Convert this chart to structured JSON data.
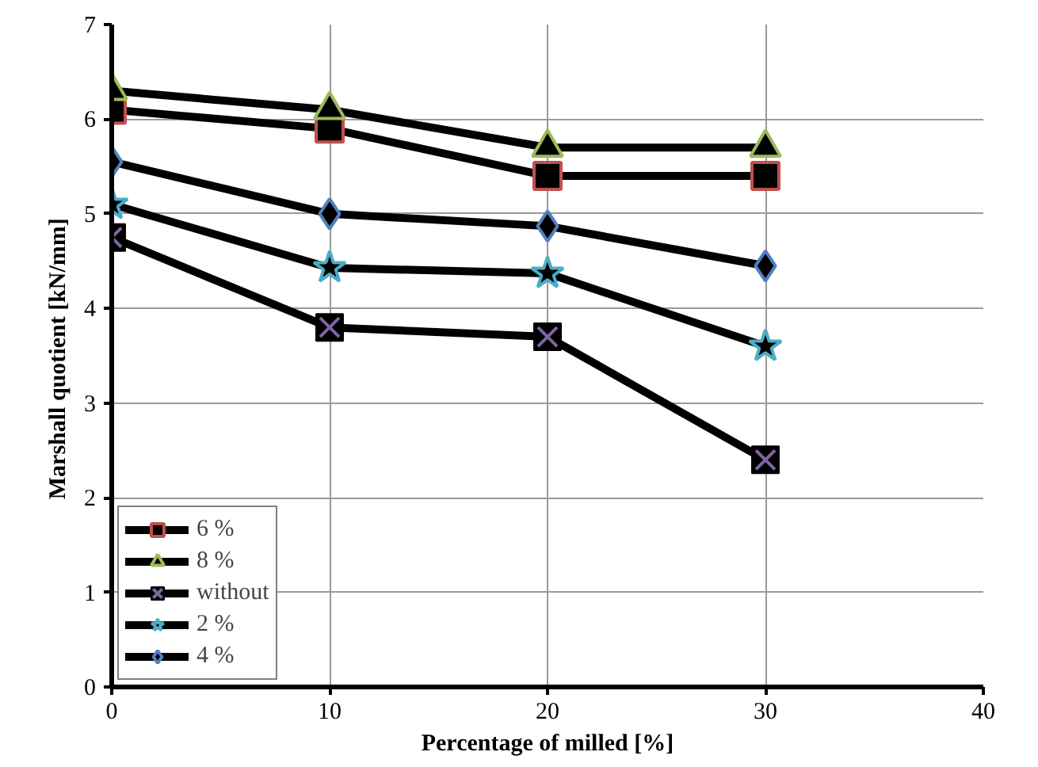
{
  "chart_data": {
    "type": "line",
    "xlabel": "Percentage of milled [%]",
    "ylabel": "Marshall quotient  [kN/mm]",
    "x": [
      0,
      10,
      20,
      30
    ],
    "xlim": [
      0,
      40
    ],
    "xticks": [
      0,
      10,
      20,
      30,
      40
    ],
    "ylim": [
      0,
      7
    ],
    "yticks": [
      0,
      1,
      2,
      3,
      4,
      5,
      6,
      7
    ],
    "grid": true,
    "legend": "bottom left",
    "series": [
      {
        "name": "6 %",
        "color": "#c0504d",
        "marker": "square",
        "values": [
          6.1,
          5.9,
          5.4,
          5.4
        ]
      },
      {
        "name": "8 %",
        "color": "#9bbb59",
        "marker": "triangle",
        "values": [
          6.3,
          6.1,
          5.7,
          5.7
        ]
      },
      {
        "name": "without",
        "color": "#8064a2",
        "marker": "cross",
        "values": [
          4.75,
          3.8,
          3.7,
          2.4
        ]
      },
      {
        "name": "2 %",
        "color": "#4bacc6",
        "marker": "star",
        "values": [
          5.1,
          4.43,
          4.37,
          3.6
        ]
      },
      {
        "name": "4 %",
        "color": "#4f81bd",
        "marker": "diamond",
        "values": [
          5.55,
          5.0,
          4.87,
          4.45
        ]
      }
    ]
  }
}
